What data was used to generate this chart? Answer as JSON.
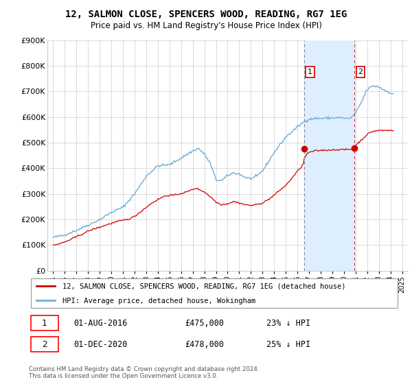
{
  "title": "12, SALMON CLOSE, SPENCERS WOOD, READING, RG7 1EG",
  "subtitle": "Price paid vs. HM Land Registry's House Price Index (HPI)",
  "hpi_color": "#6baed6",
  "price_color": "#cc0000",
  "marker1_year": 2016.583,
  "marker2_year": 2020.917,
  "marker1_price": 475000,
  "marker2_price": 478000,
  "legend_price_label": "12, SALMON CLOSE, SPENCERS WOOD, READING, RG7 1EG (detached house)",
  "legend_hpi_label": "HPI: Average price, detached house, Wokingham",
  "footnote": "Contains HM Land Registry data © Crown copyright and database right 2024.\nThis data is licensed under the Open Government Licence v3.0.",
  "ylim": [
    0,
    900000
  ],
  "yticks": [
    0,
    100000,
    200000,
    300000,
    400000,
    500000,
    600000,
    700000,
    800000,
    900000
  ],
  "ytick_labels": [
    "£0",
    "£100K",
    "£200K",
    "£300K",
    "£400K",
    "£500K",
    "£600K",
    "£700K",
    "£800K",
    "£900K"
  ],
  "xlim": [
    1994.5,
    2025.5
  ],
  "xticks": [
    1995,
    1996,
    1997,
    1998,
    1999,
    2000,
    2001,
    2002,
    2003,
    2004,
    2005,
    2006,
    2007,
    2008,
    2009,
    2010,
    2011,
    2012,
    2013,
    2014,
    2015,
    2016,
    2017,
    2018,
    2019,
    2020,
    2021,
    2022,
    2023,
    2024,
    2025
  ],
  "shade_color": "#ddeeff",
  "ann1_date": "01-AUG-2016",
  "ann1_price": "£475,000",
  "ann1_hpi": "23% ↓ HPI",
  "ann2_date": "01-DEC-2020",
  "ann2_price": "£478,000",
  "ann2_hpi": "25% ↓ HPI"
}
